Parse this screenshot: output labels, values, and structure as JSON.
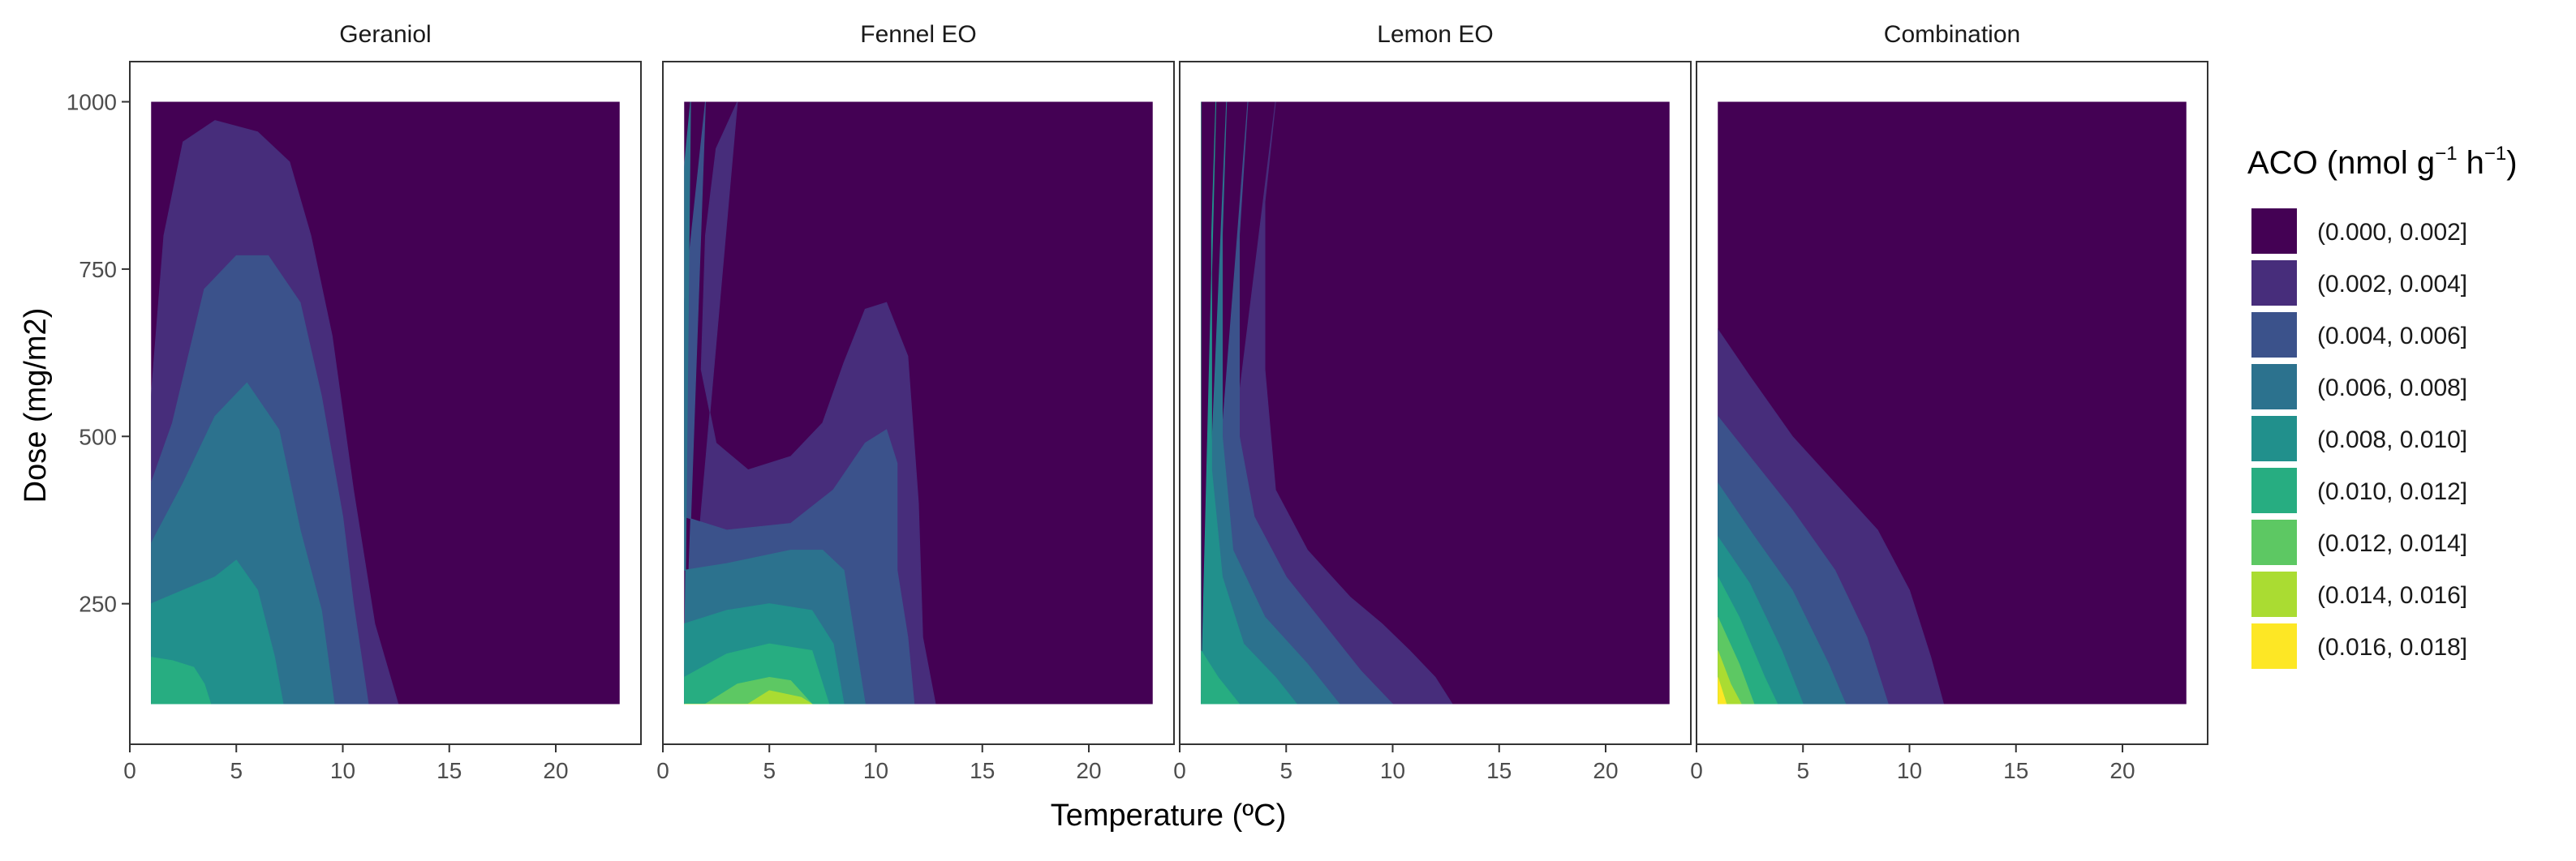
{
  "chart_data": {
    "type": "contour",
    "facets": [
      "Geraniol",
      "Fennel EO",
      "Lemon EO",
      "Combination"
    ],
    "xlabel": "Temperature (ºC)",
    "ylabel": "Dose (mg/m2)",
    "xlim": [
      0,
      24
    ],
    "ylim": [
      40,
      1060
    ],
    "x_data_range": [
      1,
      23
    ],
    "y_data_range": [
      100,
      1000
    ],
    "xticks": [
      0,
      5,
      10,
      15,
      20
    ],
    "yticks": [
      250,
      500,
      750,
      1000
    ],
    "grid": false,
    "legend": {
      "position": "right",
      "title_main": "ACO (nmol g",
      "title_sup1": "−1",
      "title_mid": " h",
      "title_sup2": "−1",
      "title_end": ")",
      "bins": [
        {
          "label": "(0.000, 0.002]",
          "color": "#440154"
        },
        {
          "label": "(0.002, 0.004]",
          "color": "#472D7B"
        },
        {
          "label": "(0.004, 0.006]",
          "color": "#3B528B"
        },
        {
          "label": "(0.006, 0.008]",
          "color": "#2C728E"
        },
        {
          "label": "(0.008, 0.010]",
          "color": "#21908C"
        },
        {
          "label": "(0.010, 0.012]",
          "color": "#27AD81"
        },
        {
          "label": "(0.012, 0.014]",
          "color": "#5DC863"
        },
        {
          "label": "(0.014, 0.016]",
          "color": "#AADC32"
        },
        {
          "label": "(0.016, 0.018]",
          "color": "#FDE725"
        }
      ]
    },
    "contour_levels": [
      {
        "facet": "Geraniol",
        "levels": [
          {
            "bin": 1,
            "boundary": [
              [
                1,
                560
              ],
              [
                1.6,
                800
              ],
              [
                2.5,
                940
              ],
              [
                4,
                972
              ],
              [
                6,
                955
              ],
              [
                7.5,
                910
              ],
              [
                8.5,
                800
              ],
              [
                9.5,
                650
              ],
              [
                10.5,
                420
              ],
              [
                11.5,
                220
              ],
              [
                12.6,
                100
              ]
            ]
          },
          {
            "bin": 2,
            "boundary": [
              [
                1,
                430
              ],
              [
                2,
                520
              ],
              [
                3.5,
                720
              ],
              [
                5,
                770
              ],
              [
                6.5,
                770
              ],
              [
                8,
                700
              ],
              [
                9,
                560
              ],
              [
                10,
                380
              ],
              [
                10.5,
                250
              ],
              [
                11.2,
                100
              ]
            ]
          },
          {
            "bin": 3,
            "boundary": [
              [
                1,
                340
              ],
              [
                2.5,
                430
              ],
              [
                4,
                530
              ],
              [
                5.5,
                580
              ],
              [
                7,
                510
              ],
              [
                8,
                360
              ],
              [
                9,
                240
              ],
              [
                9.6,
                100
              ]
            ]
          },
          {
            "bin": 4,
            "boundary": [
              [
                1,
                250
              ],
              [
                2.5,
                270
              ],
              [
                4,
                290
              ],
              [
                5,
                315
              ],
              [
                6,
                270
              ],
              [
                6.8,
                170
              ],
              [
                7.2,
                100
              ]
            ]
          },
          {
            "bin": 5,
            "boundary": [
              [
                1,
                170
              ],
              [
                2,
                165
              ],
              [
                3,
                155
              ],
              [
                3.5,
                130
              ],
              [
                3.8,
                100
              ]
            ]
          }
        ]
      },
      {
        "facet": "Fennel EO",
        "levels": [
          {
            "bin": 1,
            "boundary": [
              [
                3.5,
                1000
              ],
              [
                2.5,
                930
              ],
              [
                2,
                800
              ],
              [
                1.8,
                600
              ],
              [
                2.5,
                490
              ],
              [
                4,
                450
              ],
              [
                6,
                470
              ],
              [
                7.5,
                520
              ],
              [
                8.5,
                610
              ],
              [
                9.5,
                690
              ],
              [
                10.5,
                700
              ],
              [
                11.5,
                620
              ],
              [
                12,
                400
              ],
              [
                12.2,
                200
              ],
              [
                12.8,
                100
              ]
            ]
          },
          {
            "bin": 2,
            "boundary": [
              [
                2,
                1000
              ],
              [
                1.5,
                850
              ],
              [
                1,
                700
              ],
              [
                1,
                380
              ],
              [
                3,
                360
              ],
              [
                6,
                370
              ],
              [
                8,
                420
              ],
              [
                9.5,
                490
              ],
              [
                10.5,
                510
              ],
              [
                11,
                460
              ],
              [
                11,
                300
              ],
              [
                11.5,
                200
              ],
              [
                11.8,
                100
              ]
            ]
          },
          {
            "bin": 3,
            "boundary": [
              [
                1.3,
                1000
              ],
              [
                1,
                900
              ],
              [
                1,
                300
              ],
              [
                3,
                310
              ],
              [
                6,
                330
              ],
              [
                7.5,
                330
              ],
              [
                8.5,
                300
              ],
              [
                9,
                200
              ],
              [
                9.5,
                100
              ]
            ]
          },
          {
            "bin": 4,
            "boundary": [
              [
                1,
                220
              ],
              [
                3,
                240
              ],
              [
                5,
                250
              ],
              [
                7,
                240
              ],
              [
                8,
                190
              ],
              [
                8.5,
                100
              ]
            ]
          },
          {
            "bin": 5,
            "boundary": [
              [
                1,
                140
              ],
              [
                3,
                175
              ],
              [
                5,
                190
              ],
              [
                7,
                180
              ],
              [
                7.8,
                100
              ]
            ]
          },
          {
            "bin": 6,
            "boundary": [
              [
                2,
                100
              ],
              [
                3.5,
                130
              ],
              [
                5,
                140
              ],
              [
                6,
                135
              ],
              [
                7,
                100
              ]
            ]
          },
          {
            "bin": 7,
            "boundary": [
              [
                4,
                100
              ],
              [
                5,
                120
              ],
              [
                6.5,
                110
              ],
              [
                7,
                100
              ]
            ]
          }
        ]
      },
      {
        "facet": "Lemon EO",
        "levels": [
          {
            "bin": 1,
            "boundary": [
              [
                4.5,
                1000
              ],
              [
                4,
                850
              ],
              [
                4,
                600
              ],
              [
                4.5,
                420
              ],
              [
                6,
                330
              ],
              [
                8,
                260
              ],
              [
                9.5,
                220
              ],
              [
                10.8,
                180
              ],
              [
                12,
                140
              ],
              [
                12.8,
                100
              ]
            ]
          },
          {
            "bin": 2,
            "boundary": [
              [
                3.2,
                1000
              ],
              [
                2.8,
                800
              ],
              [
                2.8,
                500
              ],
              [
                3.5,
                380
              ],
              [
                5,
                290
              ],
              [
                7,
                210
              ],
              [
                8.5,
                150
              ],
              [
                10,
                100
              ]
            ]
          },
          {
            "bin": 3,
            "boundary": [
              [
                2.2,
                1000
              ],
              [
                2,
                800
              ],
              [
                2,
                500
              ],
              [
                2.5,
                330
              ],
              [
                4,
                230
              ],
              [
                6,
                160
              ],
              [
                7.5,
                100
              ]
            ]
          },
          {
            "bin": 4,
            "boundary": [
              [
                1.7,
                1000
              ],
              [
                1.5,
                800
              ],
              [
                1.5,
                450
              ],
              [
                2,
                290
              ],
              [
                3,
                190
              ],
              [
                4.5,
                140
              ],
              [
                5.5,
                100
              ]
            ]
          },
          {
            "bin": 5,
            "boundary": [
              [
                1,
                1000
              ],
              [
                1,
                180
              ],
              [
                1.8,
                140
              ],
              [
                2.8,
                100
              ]
            ]
          }
        ]
      },
      {
        "facet": "Combination",
        "levels": [
          {
            "bin": 1,
            "boundary": [
              [
                1,
                660
              ],
              [
                2.5,
                590
              ],
              [
                4.5,
                500
              ],
              [
                6.5,
                430
              ],
              [
                8.5,
                360
              ],
              [
                10,
                270
              ],
              [
                11,
                170
              ],
              [
                11.6,
                100
              ]
            ]
          },
          {
            "bin": 2,
            "boundary": [
              [
                1,
                530
              ],
              [
                2.5,
                470
              ],
              [
                4.5,
                390
              ],
              [
                6.5,
                300
              ],
              [
                8,
                200
              ],
              [
                9,
                100
              ]
            ]
          },
          {
            "bin": 3,
            "boundary": [
              [
                1,
                430
              ],
              [
                2.5,
                360
              ],
              [
                4.5,
                270
              ],
              [
                6.2,
                160
              ],
              [
                7,
                100
              ]
            ]
          },
          {
            "bin": 4,
            "boundary": [
              [
                1,
                350
              ],
              [
                2.5,
                280
              ],
              [
                4,
                180
              ],
              [
                5,
                100
              ]
            ]
          },
          {
            "bin": 5,
            "boundary": [
              [
                1,
                290
              ],
              [
                2,
                230
              ],
              [
                3.2,
                140
              ],
              [
                3.8,
                100
              ]
            ]
          },
          {
            "bin": 6,
            "boundary": [
              [
                1,
                230
              ],
              [
                2,
                160
              ],
              [
                2.7,
                100
              ]
            ]
          },
          {
            "bin": 7,
            "boundary": [
              [
                1,
                180
              ],
              [
                1.6,
                130
              ],
              [
                2.1,
                100
              ]
            ]
          },
          {
            "bin": 8,
            "boundary": [
              [
                1,
                140
              ],
              [
                1.4,
                100
              ]
            ]
          }
        ]
      }
    ]
  }
}
